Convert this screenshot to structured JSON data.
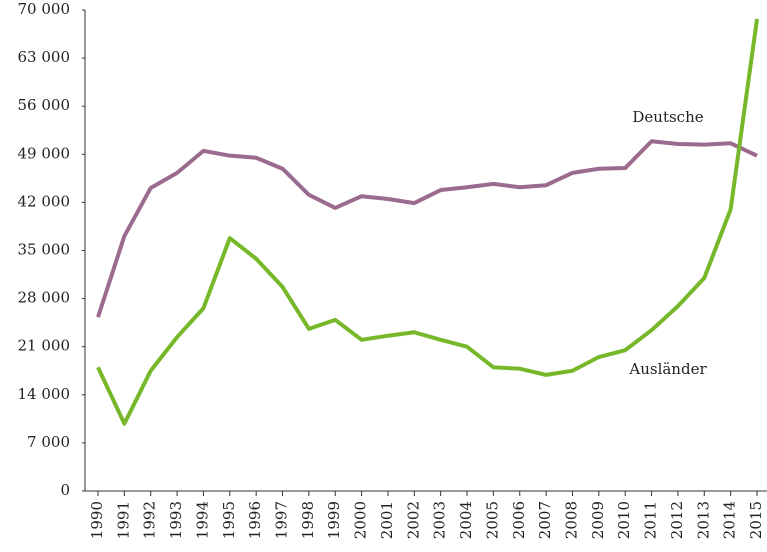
{
  "chart_data": {
    "type": "line",
    "categories": [
      "1990",
      "1991",
      "1992",
      "1993",
      "1994",
      "1995",
      "1996",
      "1997",
      "1998",
      "1999",
      "2000",
      "2001",
      "2002",
      "2003",
      "2004",
      "2005",
      "2006",
      "2007",
      "2008",
      "2009",
      "2010",
      "2011",
      "2012",
      "2013",
      "2014",
      "2015"
    ],
    "series": [
      {
        "name": "Deutsche",
        "color": "#9b6a8f",
        "values": [
          25300,
          37100,
          44100,
          46300,
          49500,
          48800,
          48500,
          46900,
          43100,
          41200,
          42900,
          42500,
          41900,
          43800,
          44200,
          44700,
          44200,
          44500,
          46300,
          46900,
          47000,
          50900,
          50500,
          50400,
          50600,
          48800
        ]
      },
      {
        "name": "Ausländer",
        "color": "#76b82a",
        "values": [
          18000,
          9800,
          17500,
          22400,
          26600,
          36800,
          33800,
          29700,
          23600,
          24900,
          22000,
          22600,
          23100,
          22000,
          21000,
          18000,
          17800,
          16900,
          17500,
          19500,
          20500,
          23400,
          26900,
          31000,
          41000,
          68700
        ]
      }
    ],
    "ylim": [
      0,
      70000
    ],
    "yticks": [
      0,
      {
        "value": 7000,
        "label": "7 000"
      },
      {
        "value": 14000,
        "label": "14 000"
      },
      {
        "value": 21000,
        "label": "21 000"
      },
      {
        "value": 28000,
        "label": "28 000"
      },
      {
        "value": 35000,
        "label": "35 000"
      },
      {
        "value": 42000,
        "label": "42 000"
      },
      {
        "value": 49000,
        "label": "49 000"
      },
      {
        "value": 56000,
        "label": "56 000"
      },
      {
        "value": 63000,
        "label": "63 000"
      },
      {
        "value": 70000,
        "label": "70 000"
      }
    ],
    "grid": false
  }
}
